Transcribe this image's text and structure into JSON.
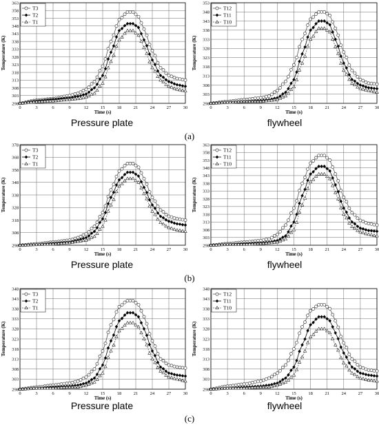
{
  "rows": [
    {
      "label": "(a)",
      "captions": [
        "Pressure plate",
        "flywheel"
      ]
    },
    {
      "label": "(b)",
      "captions": [
        "Pressure plate",
        "flywheel"
      ]
    },
    {
      "label": "(c)",
      "captions": [
        "Pressure plate",
        "flywheel"
      ]
    }
  ],
  "chart_data": [
    {
      "type": "line",
      "panel": "a-pressure-plate",
      "xlabel": "Time (s)",
      "ylabel": "Temperature (K)",
      "xlim": [
        0,
        30
      ],
      "ylim": [
        298,
        363
      ],
      "xticks": [
        0,
        3,
        6,
        9,
        12,
        15,
        18,
        21,
        24,
        27,
        30
      ],
      "yticks": [
        298,
        303,
        308,
        313,
        318,
        323,
        328,
        333,
        338,
        343,
        348,
        353,
        358,
        363
      ],
      "grid": true,
      "legend": "top-left",
      "series": [
        {
          "name": "T3",
          "marker": "circle-open",
          "peak": 357,
          "t": [
            0,
            3,
            6,
            9,
            10.5,
            12,
            13.5,
            15,
            16.5,
            18,
            19.5,
            20.5,
            21.5,
            22.5,
            24,
            25.5,
            27,
            28.5,
            30
          ],
          "values": [
            298,
            300,
            301,
            303,
            304.5,
            307,
            312,
            322,
            338,
            352,
            357,
            357,
            354,
            346,
            332,
            321,
            316,
            314,
            313
          ]
        },
        {
          "name": "T2",
          "marker": "diamond-filled",
          "peak": 349.5,
          "t": [
            0,
            3,
            6,
            9,
            10.5,
            12,
            13.5,
            15,
            16.5,
            18,
            19.5,
            20.5,
            21.5,
            22.5,
            24,
            25.5,
            27,
            28.5,
            30
          ],
          "values": [
            298,
            299.5,
            300.5,
            301.5,
            302.5,
            304,
            308,
            316,
            331,
            345,
            349.5,
            349.5,
            347,
            339,
            326,
            316,
            312,
            310,
            309
          ]
        },
        {
          "name": "T1",
          "marker": "triangle-open",
          "peak": 345,
          "t": [
            0,
            3,
            6,
            9,
            10.5,
            12,
            13.5,
            15,
            16.5,
            18,
            19.5,
            20.5,
            21.5,
            22.5,
            24,
            25.5,
            27,
            28.5,
            30
          ],
          "values": [
            298,
            299,
            299.5,
            300.5,
            301,
            302,
            304.5,
            311,
            325,
            339,
            345,
            345,
            342,
            334,
            321,
            313,
            309,
            307,
            306
          ]
        }
      ]
    },
    {
      "type": "line",
      "panel": "a-flywheel",
      "xlabel": "Time (s)",
      "ylabel": "Temperature (K)",
      "xlim": [
        0,
        30
      ],
      "ylim": [
        298,
        353
      ],
      "xticks": [
        0,
        3,
        6,
        9,
        12,
        15,
        18,
        21,
        24,
        27,
        30
      ],
      "yticks": [
        298,
        303,
        308,
        313,
        318,
        323,
        328,
        333,
        338,
        343,
        348,
        353
      ],
      "grid": true,
      "legend": "top-left",
      "series": [
        {
          "name": "T12",
          "marker": "circle-open",
          "peak": 348,
          "t": [
            0,
            3,
            6,
            9,
            10.5,
            12,
            13.5,
            15,
            16.5,
            18,
            19.5,
            20.5,
            21.5,
            22.5,
            24,
            25.5,
            27,
            28.5,
            30
          ],
          "values": [
            298,
            299,
            300,
            301,
            302,
            305,
            310,
            319,
            333,
            344,
            348,
            348,
            346,
            339,
            326,
            316,
            311,
            309,
            308.5
          ]
        },
        {
          "name": "T11",
          "marker": "diamond-filled",
          "peak": 343,
          "t": [
            0,
            3,
            6,
            9,
            10.5,
            12,
            13.5,
            15,
            16.5,
            18,
            19.5,
            20.5,
            21.5,
            22.5,
            24,
            25.5,
            27,
            28.5,
            30
          ],
          "values": [
            298,
            298.5,
            299,
            299.5,
            300,
            301,
            304,
            311,
            325,
            338,
            343,
            343,
            341,
            333,
            320,
            311,
            308,
            306.5,
            306
          ]
        },
        {
          "name": "T10",
          "marker": "triangle-open",
          "peak": 339,
          "t": [
            0,
            3,
            6,
            9,
            10.5,
            12,
            13.5,
            15,
            16.5,
            18,
            19.5,
            20.5,
            21.5,
            22.5,
            24,
            25.5,
            27,
            28.5,
            30
          ],
          "values": [
            298,
            298.5,
            299,
            299,
            299.5,
            300,
            302,
            307,
            320,
            333,
            339,
            339,
            337,
            329,
            316,
            309,
            306,
            305,
            304
          ]
        }
      ]
    },
    {
      "type": "line",
      "panel": "b-pressure-plate",
      "xlabel": "Time (s)",
      "ylabel": "Temperature (K)",
      "xlim": [
        0,
        30
      ],
      "ylim": [
        298,
        378
      ],
      "xticks": [
        0,
        3,
        6,
        9,
        12,
        15,
        18,
        21,
        24,
        27,
        30
      ],
      "yticks": [
        298,
        308,
        318,
        328,
        338,
        348,
        358,
        368,
        378
      ],
      "grid": true,
      "legend": "top-left",
      "series": [
        {
          "name": "T3",
          "marker": "circle-open",
          "peak": 363,
          "t": [
            0,
            3,
            6,
            9,
            10.5,
            12,
            13.5,
            15,
            16.5,
            18,
            19.5,
            20.5,
            21.5,
            22.5,
            24,
            25.5,
            27,
            28.5,
            30
          ],
          "values": [
            298,
            299,
            300.5,
            302,
            304,
            307,
            313,
            324,
            342,
            357,
            363,
            363,
            360,
            351,
            336,
            326,
            321,
            319,
            318
          ]
        },
        {
          "name": "T2",
          "marker": "diamond-filled",
          "peak": 356,
          "t": [
            0,
            3,
            6,
            9,
            10.5,
            12,
            13.5,
            15,
            16.5,
            18,
            19.5,
            20.5,
            21.5,
            22.5,
            24,
            25.5,
            27,
            28.5,
            30
          ],
          "values": [
            298,
            298.5,
            299.5,
            300.5,
            302,
            304,
            309,
            319,
            336,
            350,
            356,
            356,
            353,
            344,
            330,
            321,
            317,
            315,
            314
          ]
        },
        {
          "name": "T1",
          "marker": "triangle-open",
          "peak": 351,
          "t": [
            0,
            3,
            6,
            9,
            10.5,
            12,
            13.5,
            15,
            16.5,
            18,
            19.5,
            20.5,
            21.5,
            22.5,
            24,
            25.5,
            27,
            28.5,
            30
          ],
          "values": [
            298,
            298.5,
            299,
            300,
            301,
            302,
            305,
            313,
            330,
            345,
            351,
            351,
            348,
            339,
            325,
            316,
            312,
            310,
            309
          ]
        }
      ]
    },
    {
      "type": "line",
      "panel": "b-flywheel",
      "xlabel": "Time (s)",
      "ylabel": "Temperature (K)",
      "xlim": [
        0,
        30
      ],
      "ylim": [
        298,
        363
      ],
      "xticks": [
        0,
        3,
        6,
        9,
        12,
        15,
        18,
        21,
        24,
        27,
        30
      ],
      "yticks": [
        298,
        303,
        308,
        313,
        318,
        323,
        328,
        333,
        338,
        343,
        348,
        353,
        358,
        363
      ],
      "grid": true,
      "legend": "top-left",
      "series": [
        {
          "name": "T12",
          "marker": "circle-open",
          "peak": 356,
          "t": [
            0,
            3,
            6,
            9,
            10.5,
            12,
            13.5,
            15,
            16.5,
            18,
            19.5,
            20.5,
            21.5,
            22.5,
            24,
            25.5,
            27,
            28.5,
            30
          ],
          "values": [
            298,
            299,
            300,
            301,
            302,
            305,
            311,
            322,
            338,
            351,
            356,
            356,
            353,
            344,
            329,
            319,
            314,
            312,
            311
          ]
        },
        {
          "name": "T11",
          "marker": "diamond-filled",
          "peak": 349,
          "t": [
            0,
            3,
            6,
            9,
            10.5,
            12,
            13.5,
            15,
            16.5,
            18,
            19.5,
            20.5,
            21.5,
            22.5,
            24,
            25.5,
            27,
            28.5,
            30
          ],
          "values": [
            298,
            298.5,
            299,
            299.5,
            300,
            301,
            304,
            313,
            330,
            344,
            349,
            349,
            346,
            337,
            322,
            313,
            309,
            307.5,
            307
          ]
        },
        {
          "name": "T10",
          "marker": "triangle-open",
          "peak": 344,
          "t": [
            0,
            3,
            6,
            9,
            10.5,
            12,
            13.5,
            15,
            16.5,
            18,
            19.5,
            20.5,
            21.5,
            22.5,
            24,
            25.5,
            27,
            28.5,
            30
          ],
          "values": [
            298,
            298.5,
            298.5,
            299,
            299.5,
            300,
            302,
            308,
            324,
            339,
            344,
            344,
            341,
            332,
            318,
            310,
            306.5,
            305,
            304
          ]
        }
      ]
    },
    {
      "type": "line",
      "panel": "c-pressure-plate",
      "xlabel": "Time (s)",
      "ylabel": "Temperature (K)",
      "xlim": [
        0,
        30
      ],
      "ylim": [
        298,
        348
      ],
      "xticks": [
        0,
        3,
        6,
        9,
        12,
        15,
        18,
        21,
        24,
        27,
        30
      ],
      "yticks": [
        298,
        303,
        308,
        313,
        318,
        323,
        328,
        333,
        338,
        343,
        348
      ],
      "grid": true,
      "legend": "top-left",
      "series": [
        {
          "name": "T3",
          "marker": "circle-open",
          "peak": 342,
          "t": [
            0,
            3,
            6,
            9,
            10.5,
            12,
            13.5,
            15,
            16.5,
            18,
            19.5,
            20.5,
            21.5,
            22.5,
            24,
            25.5,
            27,
            28.5,
            30
          ],
          "values": [
            298,
            299,
            300,
            301,
            302,
            304,
            308,
            317,
            330,
            339,
            342,
            342,
            340,
            334,
            322,
            313,
            310,
            309,
            308.5
          ]
        },
        {
          "name": "T2",
          "marker": "diamond-filled",
          "peak": 336,
          "t": [
            0,
            3,
            6,
            9,
            10.5,
            12,
            13.5,
            15,
            16.5,
            18,
            19.5,
            20.5,
            21.5,
            22.5,
            24,
            25.5,
            27,
            28.5,
            30
          ],
          "values": [
            298,
            298.5,
            299,
            299.5,
            300,
            301,
            303.5,
            310,
            322,
            332,
            336,
            336,
            334,
            328,
            317,
            309,
            306,
            305,
            304.5
          ]
        },
        {
          "name": "T1",
          "marker": "triangle-open",
          "peak": 331,
          "t": [
            0,
            3,
            6,
            9,
            10.5,
            12,
            13.5,
            15,
            16.5,
            18,
            19.5,
            20.5,
            21.5,
            22.5,
            24,
            25.5,
            27,
            28.5,
            30
          ],
          "values": [
            298,
            298.5,
            298.5,
            299,
            299,
            300,
            301.5,
            306,
            317,
            327,
            331,
            331,
            329,
            323,
            313,
            307,
            304,
            303,
            302
          ]
        }
      ]
    },
    {
      "type": "line",
      "panel": "c-flywheel",
      "xlabel": "Time (s)",
      "ylabel": "Temperature (K)",
      "xlim": [
        0,
        30
      ],
      "ylim": [
        298,
        348
      ],
      "xticks": [
        0,
        3,
        6,
        9,
        12,
        15,
        18,
        21,
        24,
        27,
        30
      ],
      "yticks": [
        298,
        303,
        308,
        313,
        318,
        323,
        328,
        333,
        338,
        343,
        348
      ],
      "grid": true,
      "legend": "top-left",
      "series": [
        {
          "name": "T12",
          "marker": "circle-open",
          "peak": 340,
          "t": [
            0,
            3,
            6,
            9,
            10.5,
            12,
            13.5,
            15,
            16.5,
            18,
            19.5,
            20.5,
            21.5,
            22.5,
            24,
            25.5,
            27,
            28.5,
            30
          ],
          "values": [
            298,
            299.5,
            300.5,
            302,
            303.5,
            306,
            310,
            318,
            329,
            337,
            340,
            340,
            338,
            332,
            321,
            313,
            309,
            307.5,
            307
          ]
        },
        {
          "name": "T11",
          "marker": "diamond-filled",
          "peak": 334,
          "t": [
            0,
            3,
            6,
            9,
            10.5,
            12,
            13.5,
            15,
            16.5,
            18,
            19.5,
            20.5,
            21.5,
            22.5,
            24,
            25.5,
            27,
            28.5,
            30
          ],
          "values": [
            298,
            298.5,
            299,
            299.5,
            300,
            301,
            303.5,
            309,
            320,
            330,
            334,
            334,
            332,
            326,
            316,
            309,
            306,
            305,
            304.5
          ]
        },
        {
          "name": "T10",
          "marker": "triangle-open",
          "peak": 328,
          "t": [
            0,
            3,
            6,
            9,
            10.5,
            12,
            13.5,
            15,
            16.5,
            18,
            19.5,
            20.5,
            21.5,
            22.5,
            24,
            25.5,
            27,
            28.5,
            30
          ],
          "values": [
            298,
            298.5,
            298.5,
            299,
            299,
            300,
            301.5,
            305,
            314,
            324,
            328,
            328,
            326,
            320,
            311,
            306,
            303.5,
            302.5,
            302
          ]
        }
      ]
    }
  ]
}
